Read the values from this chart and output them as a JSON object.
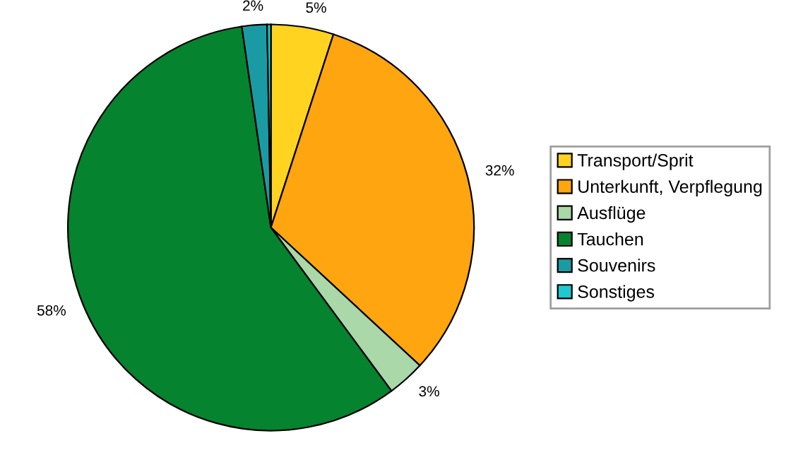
{
  "chart_data": {
    "type": "pie",
    "categories": [
      "Transport/Sprit",
      "Unterkunft, Verpflegung",
      "Ausflüge",
      "Tauchen",
      "Souvenirs",
      "Sonstiges"
    ],
    "values": [
      5,
      32,
      3,
      58,
      2,
      0.3
    ],
    "value_labels": [
      "5%",
      "32%",
      "3%",
      "58%",
      "2%",
      null
    ],
    "colors": [
      "#ffd320",
      "#ffa50f",
      "#aad8a8",
      "#05832f",
      "#1a9ba3",
      "#20c8d0"
    ],
    "legend": "right"
  }
}
